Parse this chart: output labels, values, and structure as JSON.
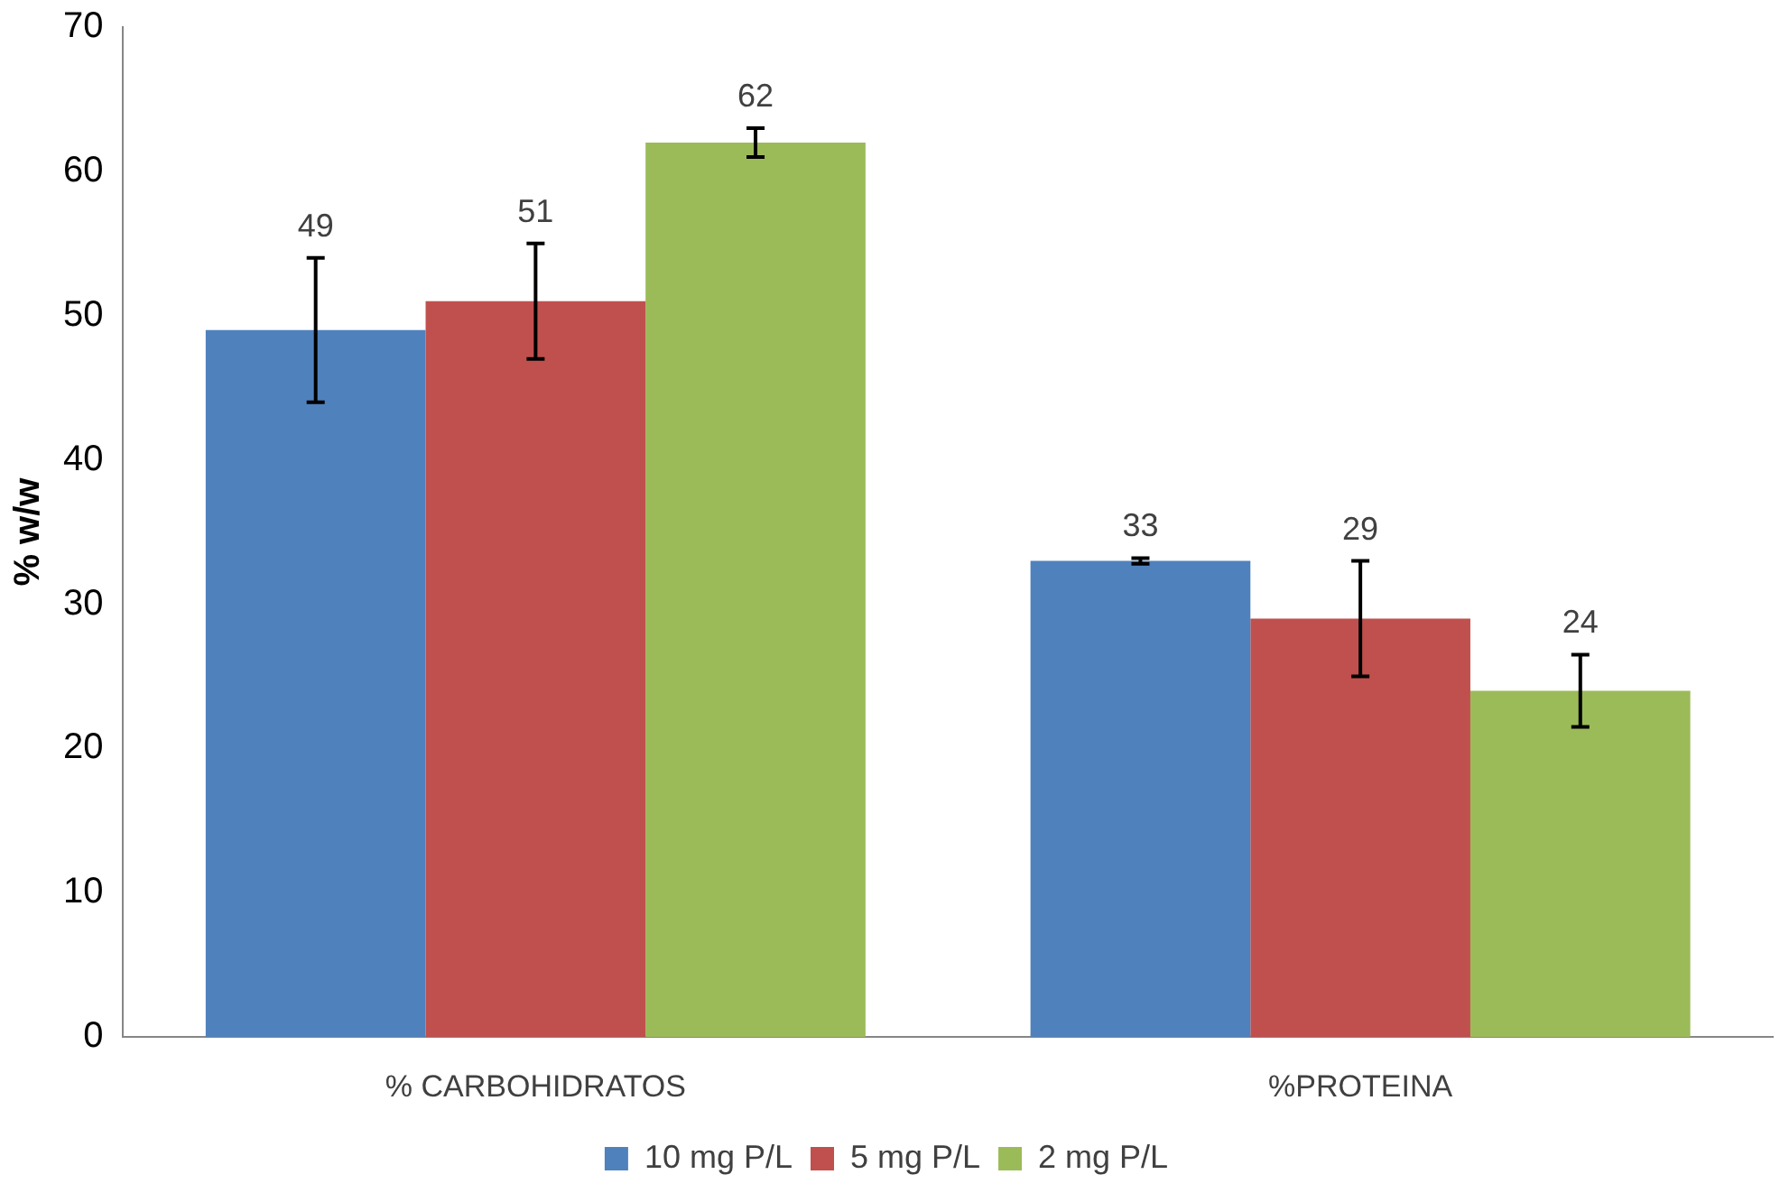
{
  "chart_data": {
    "type": "bar",
    "ylabel": "% w/w",
    "categories": [
      "% CARBOHIDRATOS",
      "%PROTEINA"
    ],
    "series": [
      {
        "name": "10 mg P/L",
        "color": "#4f81bd",
        "values": [
          49,
          33
        ],
        "errors": [
          5,
          0.2
        ]
      },
      {
        "name": "5 mg P/L",
        "color": "#c0504d",
        "values": [
          51,
          29
        ],
        "errors": [
          4,
          4
        ]
      },
      {
        "name": "2 mg P/L",
        "color": "#9bbb59",
        "values": [
          62,
          24
        ],
        "errors": [
          1,
          2.5
        ]
      }
    ],
    "ylim": [
      0,
      70
    ],
    "yticks": [
      0,
      10,
      20,
      30,
      40,
      50,
      60,
      70
    ],
    "grid": false,
    "legend": "bottom",
    "data_labels": true
  }
}
